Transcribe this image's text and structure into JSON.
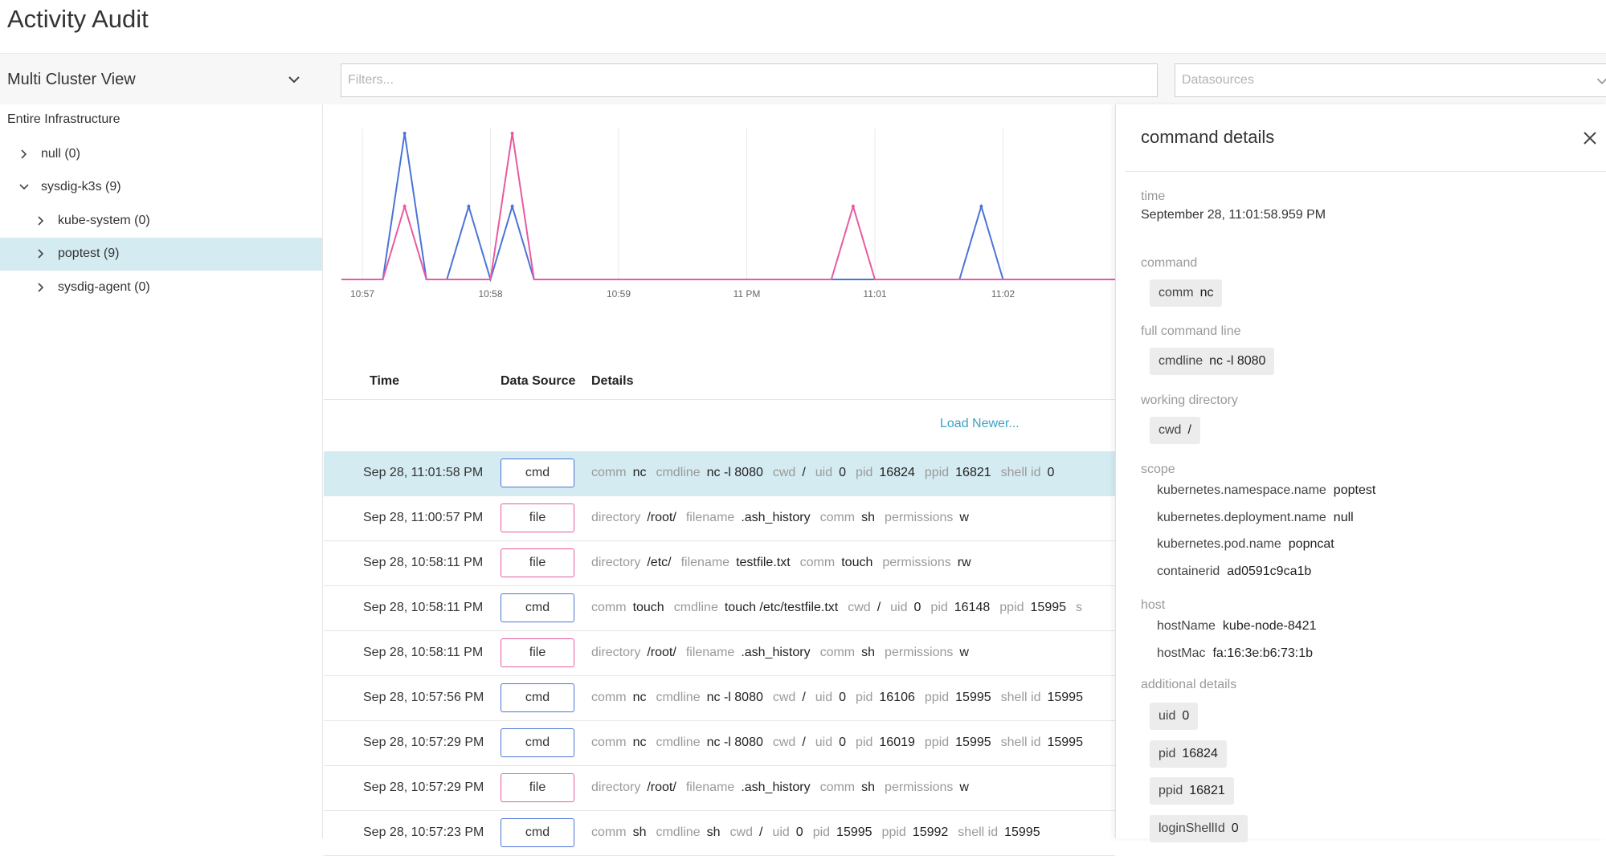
{
  "app": {
    "title": "Activity Audit"
  },
  "toolbar": {
    "cluster_view": "Multi Cluster View",
    "filters_placeholder": "Filters...",
    "datasources_placeholder": "Datasources"
  },
  "tree": {
    "root": "Entire Infrastructure",
    "items": [
      {
        "label": "null (0)",
        "level": 1,
        "expanded": false,
        "selected": false
      },
      {
        "label": "sysdig-k3s (9)",
        "level": 1,
        "expanded": true,
        "selected": false
      },
      {
        "label": "kube-system (0)",
        "level": 2,
        "expanded": false,
        "selected": false
      },
      {
        "label": "poptest (9)",
        "level": 2,
        "expanded": false,
        "selected": true
      },
      {
        "label": "sysdig-agent (0)",
        "level": 2,
        "expanded": false,
        "selected": false
      }
    ]
  },
  "chart_data": {
    "type": "line",
    "x_ticks": [
      "10:57",
      "10:58",
      "10:59",
      "11 PM",
      "11:01",
      "11:02"
    ],
    "series": [
      {
        "color": "#4a74d6",
        "peaks": [
          {
            "t": 0.33,
            "v": 1.0
          },
          {
            "t": 0.83,
            "v": 0.5
          },
          {
            "t": 1.17,
            "v": 0.5
          },
          {
            "t": 4.83,
            "v": 0.5
          }
        ]
      },
      {
        "color": "#e85aa1",
        "peaks": [
          {
            "t": 0.33,
            "v": 0.5
          },
          {
            "t": 1.17,
            "v": 1.0
          },
          {
            "t": 3.83,
            "v": 0.5
          }
        ]
      }
    ],
    "ylim": [
      0,
      1
    ],
    "grid": true
  },
  "colors": {
    "cmd": "#4a74d6",
    "file": "#e85aa1",
    "selected": "#d4ebf1",
    "link": "#3ba0c6"
  },
  "table": {
    "headers": {
      "time": "Time",
      "source": "Data Source",
      "details": "Details"
    },
    "load_newer": "Load Newer...",
    "rows": [
      {
        "time": "Sep 28, 11:01:58 PM",
        "source": "cmd",
        "selected": true,
        "details": [
          [
            "comm",
            "nc"
          ],
          [
            "cmdline",
            "nc -l 8080"
          ],
          [
            "cwd",
            "/"
          ],
          [
            "uid",
            "0"
          ],
          [
            "pid",
            "16824"
          ],
          [
            "ppid",
            "16821"
          ],
          [
            "shell id",
            "0"
          ]
        ]
      },
      {
        "time": "Sep 28, 11:00:57 PM",
        "source": "file",
        "selected": false,
        "details": [
          [
            "directory",
            "/root/"
          ],
          [
            "filename",
            ".ash_history"
          ],
          [
            "comm",
            "sh"
          ],
          [
            "permissions",
            "w"
          ]
        ]
      },
      {
        "time": "Sep 28, 10:58:11 PM",
        "source": "file",
        "selected": false,
        "details": [
          [
            "directory",
            "/etc/"
          ],
          [
            "filename",
            "testfile.txt"
          ],
          [
            "comm",
            "touch"
          ],
          [
            "permissions",
            "rw"
          ]
        ]
      },
      {
        "time": "Sep 28, 10:58:11 PM",
        "source": "cmd",
        "selected": false,
        "details": [
          [
            "comm",
            "touch"
          ],
          [
            "cmdline",
            "touch /etc/testfile.txt"
          ],
          [
            "cwd",
            "/"
          ],
          [
            "uid",
            "0"
          ],
          [
            "pid",
            "16148"
          ],
          [
            "ppid",
            "15995"
          ],
          [
            "s",
            ""
          ]
        ]
      },
      {
        "time": "Sep 28, 10:58:11 PM",
        "source": "file",
        "selected": false,
        "details": [
          [
            "directory",
            "/root/"
          ],
          [
            "filename",
            ".ash_history"
          ],
          [
            "comm",
            "sh"
          ],
          [
            "permissions",
            "w"
          ]
        ]
      },
      {
        "time": "Sep 28, 10:57:56 PM",
        "source": "cmd",
        "selected": false,
        "details": [
          [
            "comm",
            "nc"
          ],
          [
            "cmdline",
            "nc -l 8080"
          ],
          [
            "cwd",
            "/"
          ],
          [
            "uid",
            "0"
          ],
          [
            "pid",
            "16106"
          ],
          [
            "ppid",
            "15995"
          ],
          [
            "shell id",
            "15995"
          ]
        ]
      },
      {
        "time": "Sep 28, 10:57:29 PM",
        "source": "cmd",
        "selected": false,
        "details": [
          [
            "comm",
            "nc"
          ],
          [
            "cmdline",
            "nc -l 8080"
          ],
          [
            "cwd",
            "/"
          ],
          [
            "uid",
            "0"
          ],
          [
            "pid",
            "16019"
          ],
          [
            "ppid",
            "15995"
          ],
          [
            "shell id",
            "15995"
          ]
        ]
      },
      {
        "time": "Sep 28, 10:57:29 PM",
        "source": "file",
        "selected": false,
        "details": [
          [
            "directory",
            "/root/"
          ],
          [
            "filename",
            ".ash_history"
          ],
          [
            "comm",
            "sh"
          ],
          [
            "permissions",
            "w"
          ]
        ]
      },
      {
        "time": "Sep 28, 10:57:23 PM",
        "source": "cmd",
        "selected": false,
        "details": [
          [
            "comm",
            "sh"
          ],
          [
            "cmdline",
            "sh"
          ],
          [
            "cwd",
            "/"
          ],
          [
            "uid",
            "0"
          ],
          [
            "pid",
            "15995"
          ],
          [
            "ppid",
            "15992"
          ],
          [
            "shell id",
            "15995"
          ]
        ]
      }
    ]
  },
  "panel": {
    "title": "command details",
    "time_label": "time",
    "time_value": "September 28, 11:01:58.959 PM",
    "command_label": "command",
    "command": {
      "k": "comm",
      "v": "nc"
    },
    "cmdline_label": "full command line",
    "cmdline": {
      "k": "cmdline",
      "v": "nc -l 8080"
    },
    "cwd_label": "working directory",
    "cwd": {
      "k": "cwd",
      "v": "/"
    },
    "scope_label": "scope",
    "scope": [
      {
        "k": "kubernetes.namespace.name",
        "v": "poptest"
      },
      {
        "k": "kubernetes.deployment.name",
        "v": "null"
      },
      {
        "k": "kubernetes.pod.name",
        "v": "popncat"
      },
      {
        "k": "containerid",
        "v": "ad0591c9ca1b"
      }
    ],
    "host_label": "host",
    "host": [
      {
        "k": "hostName",
        "v": "kube-node-8421"
      },
      {
        "k": "hostMac",
        "v": "fa:16:3e:b6:73:1b"
      }
    ],
    "additional_label": "additional details",
    "additional": [
      {
        "k": "uid",
        "v": "0"
      },
      {
        "k": "pid",
        "v": "16824"
      },
      {
        "k": "ppid",
        "v": "16821"
      },
      {
        "k": "loginShellId",
        "v": "0"
      }
    ]
  }
}
